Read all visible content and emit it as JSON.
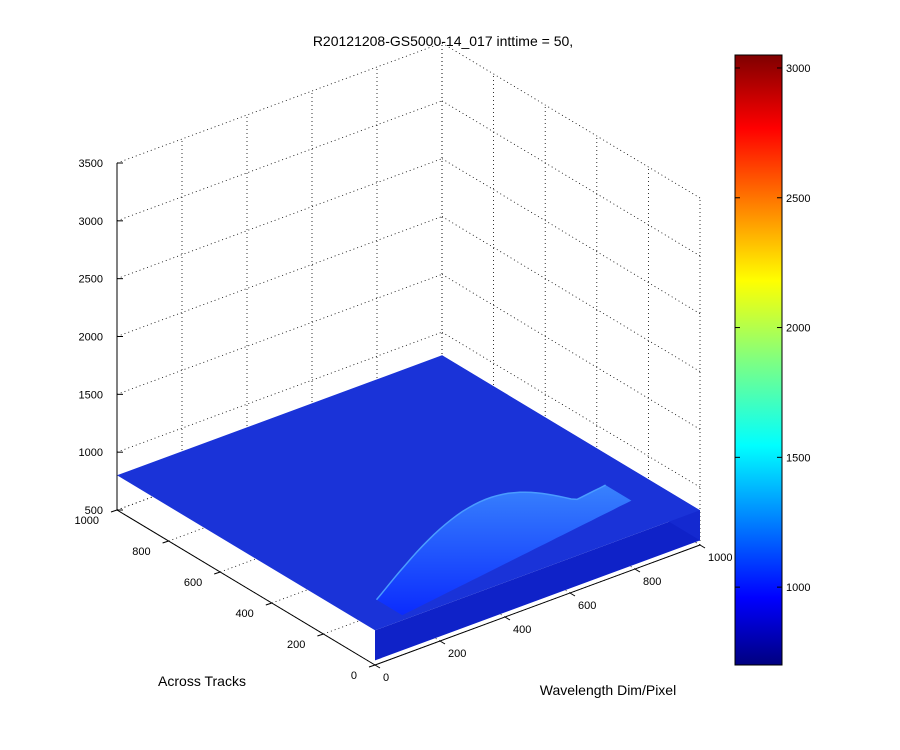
{
  "chart_data": {
    "type": "surface",
    "title": "R20121208-GS5000-14_017 inttime = 50,",
    "xlabel": "Wavelength Dim/Pixel",
    "ylabel": "Across Tracks",
    "zlabel": "",
    "xlim": [
      0,
      1000
    ],
    "ylim": [
      0,
      1000
    ],
    "zlim": [
      500,
      3500
    ],
    "x_ticks": [
      "0",
      "200",
      "400",
      "600",
      "800",
      "1000"
    ],
    "y_ticks": [
      "0",
      "200",
      "400",
      "600",
      "800",
      "1000"
    ],
    "z_ticks": [
      "500",
      "1000",
      "1500",
      "2000",
      "2500",
      "3000",
      "3500"
    ],
    "grid": true,
    "surface_summary": {
      "baseline_level": 800,
      "peak_band_level": 1200,
      "peak_band_x_range": [
        100,
        900
      ],
      "peak_band_y_range": [
        50,
        200
      ]
    },
    "colorbar": {
      "range": [
        700,
        3050
      ],
      "ticks": [
        "1000",
        "1500",
        "2000",
        "2500",
        "3000"
      ],
      "colormap": "jet"
    }
  }
}
